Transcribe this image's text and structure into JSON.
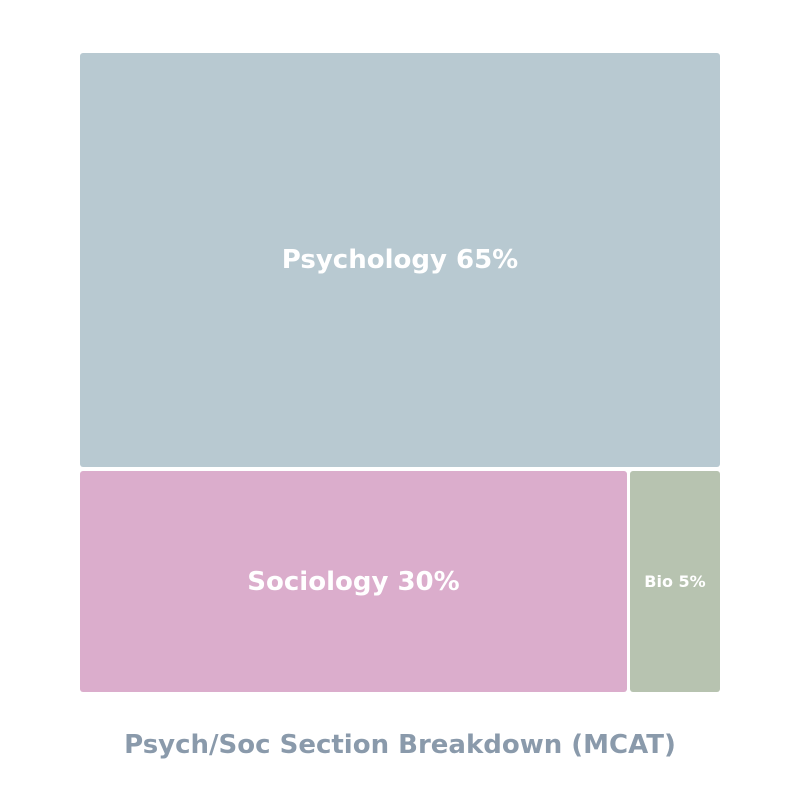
{
  "chart_data": {
    "type": "treemap",
    "title": "Psych/Soc Section Breakdown (MCAT)",
    "categories": [
      "Psychology",
      "Sociology",
      "Bio"
    ],
    "values": [
      65,
      30,
      5
    ],
    "unit": "%",
    "labels": [
      "Psychology 65%",
      "Sociology 30%",
      "Bio 5%"
    ],
    "colors": [
      "#b8c9d1",
      "#dbadcc",
      "#b7c3b0"
    ],
    "title_color": "#8a9aab"
  }
}
